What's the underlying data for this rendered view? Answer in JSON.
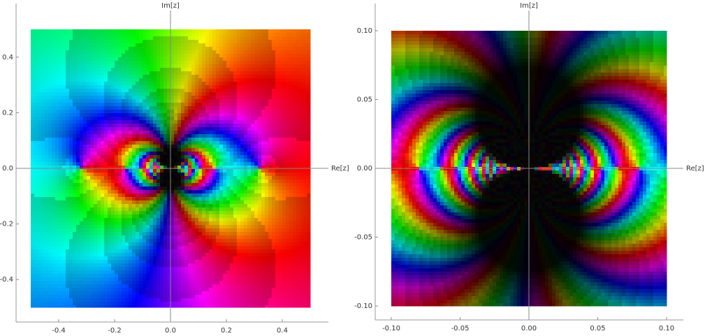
{
  "chart_data": [
    {
      "type": "complex-plot",
      "x_label": "Re[z]",
      "y_label": "Im[z]",
      "xlim": [
        -0.5,
        0.5
      ],
      "ylim": [
        -0.5,
        0.5
      ],
      "xticks": [
        -0.4,
        -0.2,
        {
          "value": 0,
          "label": "0.0"
        },
        0.2,
        0.4
      ],
      "yticks": [
        -0.4,
        -0.2,
        {
          "value": 0,
          "label": "0.0"
        },
        0.2,
        0.4
      ]
    },
    {
      "type": "complex-plot",
      "x_label": "Re[z]",
      "y_label": "Im[z]",
      "xlim": [
        -0.1,
        0.1
      ],
      "ylim": [
        -0.1,
        0.1
      ],
      "xticks": [
        {
          "value": -0.1,
          "label": "-0.10"
        },
        {
          "value": -0.05,
          "label": "-0.05"
        },
        {
          "value": 0,
          "label": "0.00"
        },
        0.05,
        {
          "value": 0.1,
          "label": "0.10"
        }
      ],
      "yticks": [
        {
          "value": -0.1,
          "label": "-0.10"
        },
        {
          "value": -0.05,
          "label": "-0.05"
        },
        {
          "value": 0,
          "label": "0.00"
        },
        0.05,
        {
          "value": 0.1,
          "label": "0.10"
        }
      ]
    }
  ]
}
